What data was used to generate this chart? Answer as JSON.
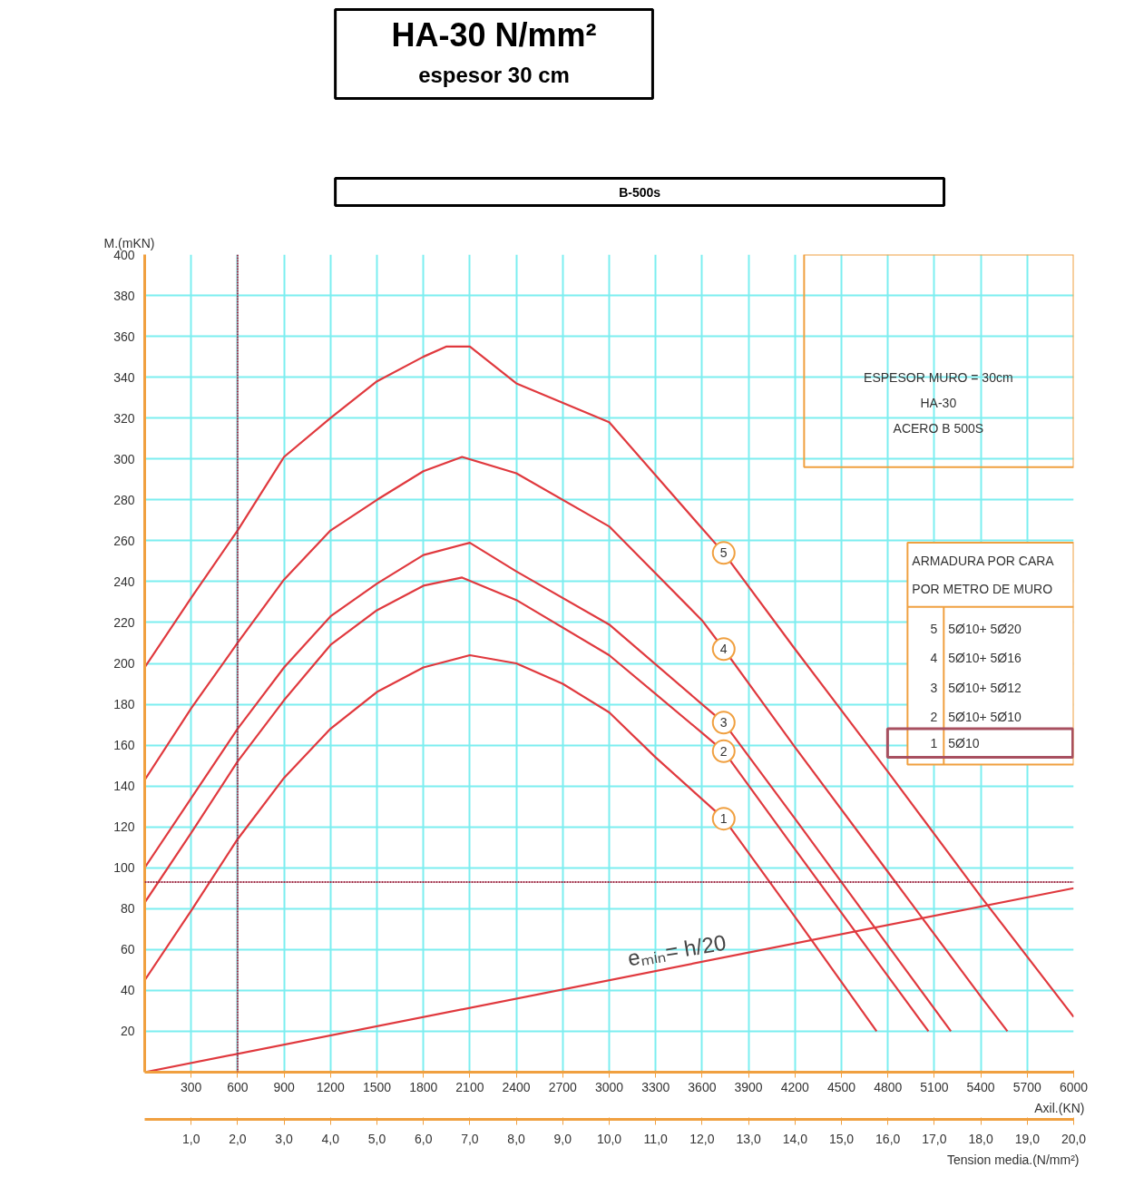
{
  "chart_data": {
    "type": "line",
    "title": "HA-30 N/mm²",
    "subtitle": "espesor 30 cm",
    "ylabel": "M.(mKN)",
    "xlabel": "Axil.(KN)",
    "x2label": "Tension media.(N/mm²)",
    "xlim": [
      0,
      6000
    ],
    "ylim": [
      0,
      400
    ],
    "xticks": [
      300,
      600,
      900,
      1200,
      1500,
      1800,
      2100,
      2400,
      2700,
      3000,
      3300,
      3600,
      3900,
      4200,
      4500,
      4800,
      5100,
      5400,
      5700,
      6000
    ],
    "yticks": [
      20,
      40,
      60,
      80,
      100,
      120,
      140,
      160,
      180,
      200,
      220,
      240,
      260,
      280,
      300,
      320,
      340,
      360,
      380,
      400
    ],
    "x2lim": [
      0,
      20
    ],
    "x2ticks": [
      {
        "value": 1,
        "label": "1,0"
      },
      {
        "value": 2,
        "label": "2,0"
      },
      {
        "value": 3,
        "label": "3,0"
      },
      {
        "value": 4,
        "label": "4,0"
      },
      {
        "value": 5,
        "label": "5,0"
      },
      {
        "value": 6,
        "label": "6,0"
      },
      {
        "value": 7,
        "label": "7,0"
      },
      {
        "value": 8,
        "label": "8,0"
      },
      {
        "value": 9,
        "label": "9,0"
      },
      {
        "value": 10,
        "label": "10,0"
      },
      {
        "value": 11,
        "label": "11,0"
      },
      {
        "value": 12,
        "label": "12,0"
      },
      {
        "value": 13,
        "label": "13,0"
      },
      {
        "value": 14,
        "label": "14,0"
      },
      {
        "value": 15,
        "label": "15,0"
      },
      {
        "value": 16,
        "label": "16,0"
      },
      {
        "value": 17,
        "label": "17,0"
      },
      {
        "value": 18,
        "label": "18,0"
      },
      {
        "value": 19,
        "label": "19,0"
      },
      {
        "value": 20,
        "label": "20,0"
      }
    ],
    "grid": true,
    "series": [
      {
        "name": "1",
        "color": "#e0393e",
        "x": [
          0,
          300,
          600,
          900,
          1200,
          1500,
          1800,
          2100,
          2400,
          2700,
          3000,
          3300,
          3740,
          4200,
          4727
        ],
        "values": [
          45,
          79,
          114,
          144,
          168,
          186,
          198,
          204,
          200,
          190,
          176,
          154,
          124,
          76,
          20
        ]
      },
      {
        "name": "2",
        "color": "#e0393e",
        "x": [
          0,
          300,
          600,
          900,
          1200,
          1500,
          1800,
          2050,
          2400,
          3000,
          3600,
          3740,
          4200,
          4800,
          5062
        ],
        "values": [
          83,
          117,
          152,
          182,
          209,
          226,
          238,
          242,
          231,
          204,
          166,
          157,
          109,
          47,
          20
        ]
      },
      {
        "name": "3",
        "color": "#e0393e",
        "x": [
          0,
          300,
          600,
          900,
          1200,
          1500,
          1800,
          2100,
          2400,
          3000,
          3600,
          3740,
          4200,
          4800,
          5207
        ],
        "values": [
          100,
          134,
          168,
          198,
          223,
          239,
          253,
          259,
          245,
          219,
          180,
          171,
          124,
          62,
          20
        ]
      },
      {
        "name": "4",
        "color": "#e0393e",
        "x": [
          0,
          300,
          600,
          900,
          1200,
          1500,
          1800,
          2050,
          2400,
          3000,
          3600,
          3740,
          4200,
          4800,
          5400,
          5572
        ],
        "values": [
          143,
          178,
          210,
          241,
          265,
          280,
          294,
          301,
          293,
          267,
          221,
          207,
          159,
          98,
          37,
          20
        ]
      },
      {
        "name": "5",
        "color": "#e0393e",
        "x": [
          0,
          300,
          600,
          900,
          1200,
          1500,
          1800,
          1950,
          2100,
          2400,
          3000,
          3600,
          3740,
          4200,
          4800,
          5400,
          6000
        ],
        "values": [
          198,
          232,
          265,
          301,
          320,
          338,
          350,
          355,
          355,
          337,
          318,
          266,
          254,
          207,
          147,
          86,
          27
        ]
      },
      {
        "color": "#e0393e",
        "x": [
          0,
          6000
        ],
        "values": [
          0,
          90
        ]
      }
    ],
    "ref_lines": [
      {
        "axis": "x",
        "value": 600,
        "color": "#9e2b45",
        "line_style": "dotted"
      },
      {
        "axis": "y",
        "value": 93,
        "color": "#9e2b45",
        "line_style": "dotted"
      }
    ],
    "annotations": [
      "B-500s",
      "ESPESOR MURO = 30cm",
      "HA-30",
      "ACERO B 500S",
      "ARMADURA POR CARA",
      "POR METRO DE MURO",
      "5",
      "5Ø10+ 5Ø20",
      "4",
      "5Ø10+ 5Ø16",
      "3",
      "5Ø10+ 5Ø12",
      "2",
      "5Ø10+ 5Ø10",
      "1",
      "5Ø10",
      {
        "text": "eₘᵢₙ= h/20",
        "x": 3450,
        "y": 52
      }
    ]
  }
}
